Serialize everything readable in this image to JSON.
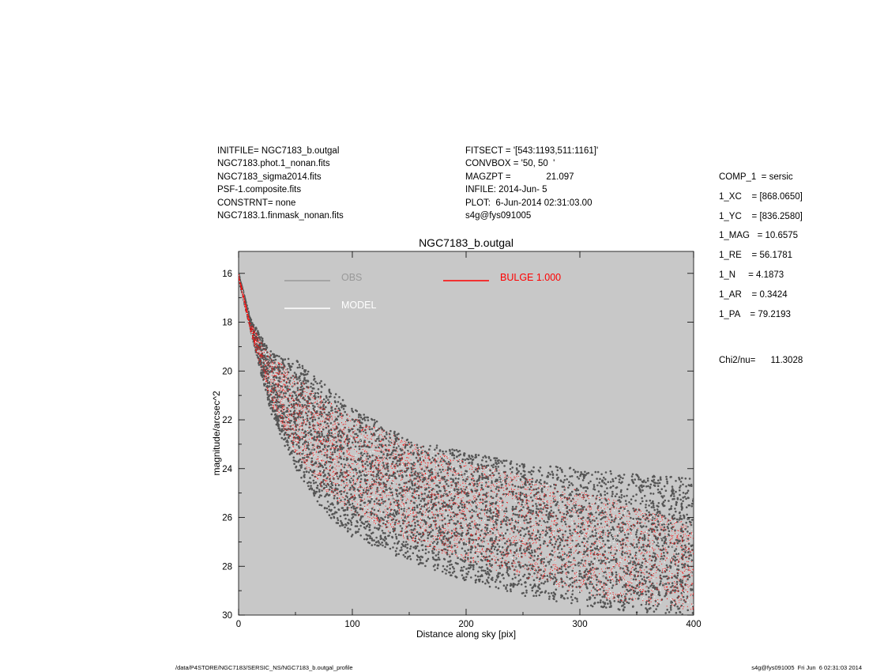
{
  "header_left": [
    "INITFILE= NGC7183_b.outgal",
    "NGC7183.phot.1_nonan.fits",
    "NGC7183_sigma2014.fits",
    "PSF-1.composite.fits",
    "CONSTRNT= none",
    "NGC7183.1.finmask_nonan.fits"
  ],
  "header_mid": [
    "FITSECT = '[543:1193,511:1161]'",
    "CONVBOX = '50, 50  '",
    "MAGZPT =              21.097",
    "INFILE: 2014-Jun- 5",
    "PLOT:  6-Jun-2014 02:31:03.00",
    "s4g@fys091005"
  ],
  "params": [
    "COMP_1  = sersic",
    "1_XC    = [868.0650]",
    "1_YC    = [836.2580]",
    "1_MAG   = 10.6575",
    "1_RE    = 56.1781",
    "1_N     = 4.1873",
    "1_AR    = 0.3424",
    "1_PA    = 79.2193"
  ],
  "chi2": "Chi2/nu=      11.3028",
  "footer_left": "/data/P4STORE/NGC7183/SERSIC_NS/NGC7183_b.outgal_profile",
  "footer_right": "s4g@fys091005  Fri Jun  6 02:31:03 2014",
  "colors": {
    "obs": "#555555",
    "model": "#ffffff",
    "bulge": "#ff0000",
    "plot_bg": "#c8c8c8"
  },
  "chart_data": {
    "type": "scatter",
    "title": "NGC7183_b.outgal",
    "xlabel": "Distance along sky [pix]",
    "ylabel": "magnitude/arcsec^2",
    "xlim": [
      0,
      400
    ],
    "ylim": [
      30,
      15.1
    ],
    "y_inverted": true,
    "x_ticks": [
      0,
      100,
      200,
      300,
      400
    ],
    "y_ticks": [
      16,
      18,
      20,
      22,
      24,
      26,
      28,
      30
    ],
    "grid": false,
    "legend": [
      {
        "label": "OBS",
        "color": "#999999",
        "position": "top-left"
      },
      {
        "label": "MODEL",
        "color": "#ffffff",
        "position": "top-left"
      },
      {
        "label": "BULGE  1.000",
        "color": "#ff0000",
        "position": "top-center"
      }
    ],
    "series": [
      {
        "name": "OBS",
        "envelope": {
          "x": [
            0,
            10,
            20,
            30,
            50,
            75,
            100,
            150,
            200,
            250,
            300,
            350,
            400
          ],
          "y_upper": [
            16.0,
            17.8,
            18.6,
            19.3,
            19.5,
            20.5,
            21.5,
            22.8,
            23.3,
            23.8,
            24.0,
            24.2,
            24.4
          ],
          "y_lower": [
            16.2,
            18.2,
            20.2,
            22.0,
            24.0,
            25.8,
            26.8,
            27.8,
            28.6,
            29.2,
            29.6,
            29.9,
            30.0
          ]
        }
      },
      {
        "name": "MODEL",
        "envelope": {
          "x": [
            0,
            10,
            20,
            30,
            50,
            75,
            100,
            150,
            200,
            250,
            300,
            350,
            400
          ],
          "y_upper": [
            16.0,
            18.0,
            18.8,
            19.4,
            20.2,
            21.1,
            21.9,
            22.9,
            23.7,
            24.3,
            24.9,
            25.6,
            26.3
          ],
          "y_lower": [
            16.2,
            18.3,
            20.0,
            21.5,
            23.4,
            24.9,
            25.8,
            27.0,
            27.8,
            28.5,
            29.1,
            29.5,
            29.8
          ]
        }
      },
      {
        "name": "BULGE  1.000",
        "envelope": {
          "x": [
            0,
            10,
            20,
            30,
            50,
            75,
            100,
            150,
            200,
            250,
            300,
            330,
            350,
            400
          ],
          "y_upper": [
            16.0,
            18.0,
            18.8,
            19.4,
            20.2,
            21.1,
            21.9,
            22.9,
            23.7,
            24.3,
            24.9,
            25.3,
            25.6,
            26.3
          ],
          "y_lower": [
            16.2,
            18.3,
            20.0,
            21.5,
            23.4,
            24.9,
            25.8,
            27.0,
            27.8,
            28.5,
            29.1,
            29.4,
            29.5,
            29.8
          ]
        }
      }
    ]
  }
}
